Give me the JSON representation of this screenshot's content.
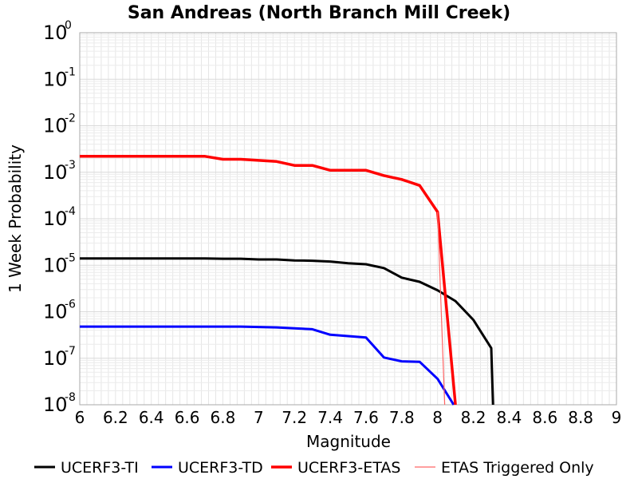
{
  "chart_data": {
    "type": "line",
    "title": "San Andreas (North Branch Mill Creek)",
    "xlabel": "Magnitude",
    "ylabel": "1 Week Probability",
    "xlim": [
      6,
      9
    ],
    "ylim": [
      1e-08,
      1
    ],
    "yscale": "log",
    "grid": true,
    "legend_position": "bottom",
    "xticks": [
      "6",
      "6.2",
      "6.4",
      "6.6",
      "6.8",
      "7",
      "7.2",
      "7.4",
      "7.6",
      "7.8",
      "8",
      "8.2",
      "8.4",
      "8.6",
      "8.8",
      "9"
    ],
    "yticks": [
      {
        "base": "10",
        "exp": "0"
      },
      {
        "base": "10",
        "exp": "-1"
      },
      {
        "base": "10",
        "exp": "-2"
      },
      {
        "base": "10",
        "exp": "-3"
      },
      {
        "base": "10",
        "exp": "-4"
      },
      {
        "base": "10",
        "exp": "-5"
      },
      {
        "base": "10",
        "exp": "-6"
      },
      {
        "base": "10",
        "exp": "-7"
      },
      {
        "base": "10",
        "exp": "-8"
      }
    ],
    "series": [
      {
        "name": "UCERF3-TI",
        "color": "#000000",
        "width": 3,
        "x": [
          6.0,
          6.1,
          6.2,
          6.3,
          6.4,
          6.5,
          6.6,
          6.7,
          6.8,
          6.9,
          7.0,
          7.1,
          7.2,
          7.3,
          7.4,
          7.5,
          7.6,
          7.7,
          7.8,
          7.9,
          8.0,
          8.1,
          8.2,
          8.3,
          8.31
        ],
        "y": [
          1.4e-05,
          1.4e-05,
          1.4e-05,
          1.4e-05,
          1.4e-05,
          1.4e-05,
          1.4e-05,
          1.4e-05,
          1.38e-05,
          1.38e-05,
          1.33e-05,
          1.33e-05,
          1.27e-05,
          1.25e-05,
          1.2e-05,
          1.1e-05,
          1.05e-05,
          8.7e-06,
          5.4e-06,
          4.4e-06,
          2.9e-06,
          1.7e-06,
          6.7e-07,
          1.65e-07,
          1e-08
        ]
      },
      {
        "name": "UCERF3-TD",
        "color": "#0000ff",
        "width": 3,
        "x": [
          6.0,
          6.1,
          6.2,
          6.3,
          6.4,
          6.5,
          6.6,
          6.7,
          6.8,
          6.9,
          7.0,
          7.1,
          7.2,
          7.3,
          7.4,
          7.5,
          7.6,
          7.7,
          7.8,
          7.9,
          8.0,
          8.09
        ],
        "y": [
          4.8e-07,
          4.8e-07,
          4.8e-07,
          4.8e-07,
          4.8e-07,
          4.8e-07,
          4.8e-07,
          4.8e-07,
          4.8e-07,
          4.8e-07,
          4.7e-07,
          4.6e-07,
          4.4e-07,
          4.2e-07,
          3.2e-07,
          3e-07,
          2.8e-07,
          1.04e-07,
          8.6e-08,
          8.4e-08,
          3.6e-08,
          1e-08
        ]
      },
      {
        "name": "UCERF3-ETAS",
        "color": "#ff0000",
        "width": 3.5,
        "x": [
          6.0,
          6.1,
          6.2,
          6.3,
          6.4,
          6.5,
          6.6,
          6.7,
          6.8,
          6.9,
          7.0,
          7.1,
          7.2,
          7.3,
          7.4,
          7.5,
          7.6,
          7.7,
          7.8,
          7.9,
          8.0,
          8.1
        ],
        "y": [
          0.0022,
          0.0022,
          0.0022,
          0.0022,
          0.0022,
          0.0022,
          0.0022,
          0.0022,
          0.0019,
          0.0019,
          0.0018,
          0.0017,
          0.0014,
          0.0014,
          0.0011,
          0.0011,
          0.0011,
          0.00085,
          0.0007,
          0.00052,
          0.00014,
          1e-08
        ]
      },
      {
        "name": "ETAS Triggered Only",
        "color": "#ff6666",
        "width": 1.2,
        "x": [
          8.0,
          8.04
        ],
        "y": [
          0.00014,
          1e-08
        ]
      }
    ]
  }
}
